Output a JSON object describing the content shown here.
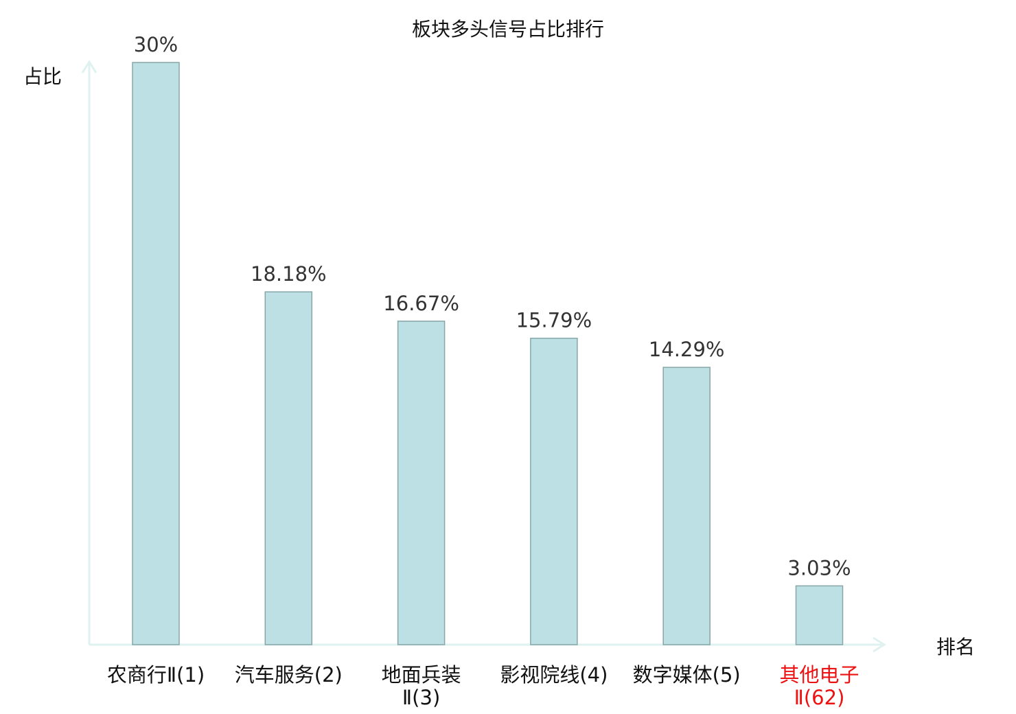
{
  "chart_data": {
    "type": "bar",
    "title": "板块多头信号占比排行",
    "ylabel": "占比",
    "xlabel": "排名",
    "categories": [
      "农商行Ⅱ(1)",
      "汽车服务(2)",
      "地面兵装\nⅡ(3)",
      "影视院线(4)",
      "数字媒体(5)",
      "其他电子\nⅡ(62)"
    ],
    "values": [
      30,
      18.18,
      16.67,
      15.79,
      14.29,
      3.03
    ],
    "value_labels": [
      "30%",
      "18.18%",
      "16.67%",
      "15.79%",
      "14.29%",
      "3.03%"
    ],
    "highlight_index": 5,
    "ylim": [
      0,
      30
    ],
    "grid": false,
    "colors": {
      "bar_fill": "#bce0e3",
      "bar_stroke": "#88a6a8",
      "axis": "#dff2f0",
      "label": "#111111",
      "value_label": "#333333",
      "highlight": "#ee1111"
    }
  }
}
